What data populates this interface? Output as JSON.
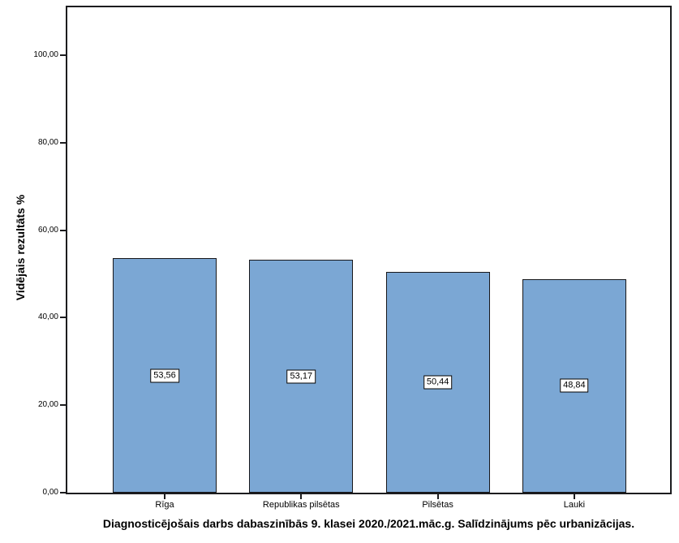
{
  "chart_data": {
    "type": "bar",
    "title": "Diagnosticējošais darbs dabaszinībās 9. klasei 2020./2021.māc.g. Salīdzinājums pēc urbanizācijas.",
    "title_position": "bottom",
    "ylabel": "Vidējais rezultāts %",
    "xlabel": "",
    "categories": [
      "Rīga",
      "Republikas pilsētas",
      "Pilsētas",
      "Lauki"
    ],
    "values": [
      53.56,
      53.17,
      50.44,
      48.84
    ],
    "value_labels": [
      "53,56",
      "53,17",
      "50,44",
      "48,84"
    ],
    "yticks": [
      0,
      20,
      40,
      60,
      80,
      100
    ],
    "ytick_labels": [
      "0,00",
      "20,00",
      "40,00",
      "60,00",
      "80,00",
      "100,00"
    ],
    "ylim": [
      0,
      111
    ],
    "grid": false,
    "legend": "none",
    "bar_color": "#7BA7D4",
    "bar_border_color": "#17171a",
    "axis_color": "#1c1c1e",
    "value_label_style": "white box, black border, centered at mid-height of bar"
  }
}
